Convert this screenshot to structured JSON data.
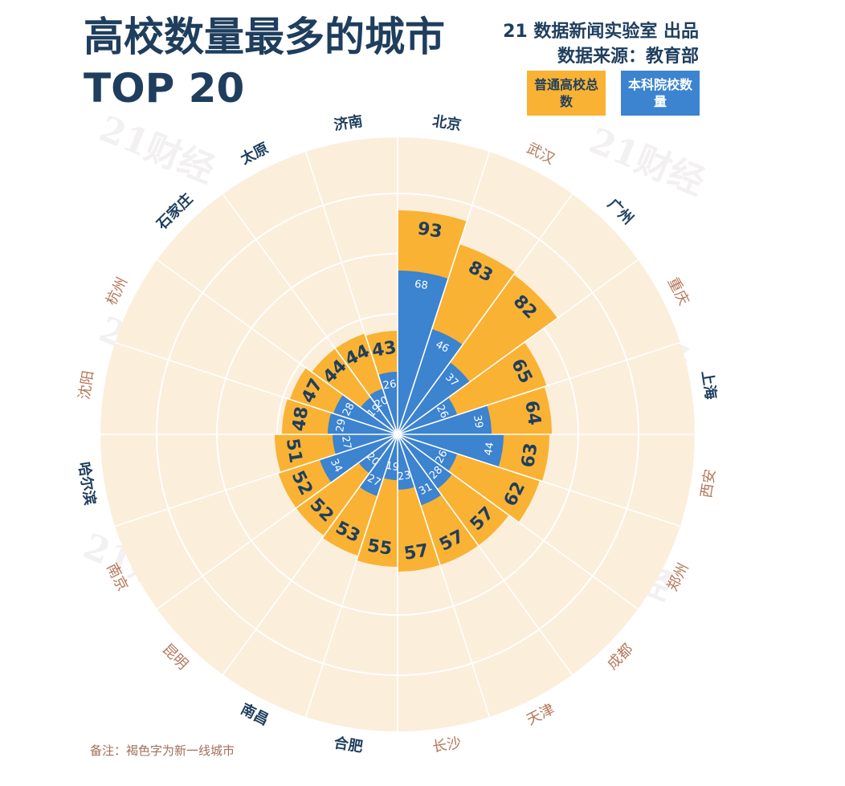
{
  "title": {
    "line1": "高校数量最多的城市",
    "line2": "TOP 20"
  },
  "credit": {
    "line1": "21 数据新闻实验室   出品",
    "line2": "数据来源：教育部"
  },
  "legend": {
    "total": "普通高校总数",
    "undergrad": "本科院校数量"
  },
  "note": "备注：褐色字为新一线城市",
  "watermark": "21财经",
  "colors": {
    "total": "#f9b233",
    "undergrad": "#3c83d0",
    "background_disc": "#fbeedb",
    "tier1_label": "#1f3e5e",
    "new_tier1_label": "#b5775b",
    "value_text": "#1f3e5e"
  },
  "chart_data": {
    "type": "polar-bar",
    "title": "高校数量最多的城市 TOP 20",
    "rmax": 100,
    "rings": [
      25,
      50,
      75,
      100
    ],
    "series": [
      {
        "name": "普通高校总数",
        "values": [
          93,
          83,
          82,
          65,
          64,
          63,
          62,
          57,
          57,
          57,
          55,
          53,
          52,
          52,
          51,
          48,
          47,
          44,
          44,
          43
        ]
      },
      {
        "name": "本科院校数量",
        "values": [
          68,
          46,
          37,
          26,
          39,
          44,
          26,
          28,
          31,
          23,
          19,
          27,
          20,
          34,
          27,
          29,
          28,
          19,
          20,
          26
        ]
      }
    ],
    "categories": [
      {
        "name": "北京",
        "new_tier1": false
      },
      {
        "name": "武汉",
        "new_tier1": true
      },
      {
        "name": "广州",
        "new_tier1": false
      },
      {
        "name": "重庆",
        "new_tier1": true
      },
      {
        "name": "上海",
        "new_tier1": false
      },
      {
        "name": "西安",
        "new_tier1": true
      },
      {
        "name": "郑州",
        "new_tier1": true
      },
      {
        "name": "成都",
        "new_tier1": true
      },
      {
        "name": "天津",
        "new_tier1": true
      },
      {
        "name": "长沙",
        "new_tier1": true
      },
      {
        "name": "合肥",
        "new_tier1": false
      },
      {
        "name": "南昌",
        "new_tier1": false
      },
      {
        "name": "昆明",
        "new_tier1": true
      },
      {
        "name": "南京",
        "new_tier1": true
      },
      {
        "name": "哈尔滨",
        "new_tier1": false
      },
      {
        "name": "沈阳",
        "new_tier1": true
      },
      {
        "name": "杭州",
        "new_tier1": true
      },
      {
        "name": "石家庄",
        "new_tier1": false
      },
      {
        "name": "太原",
        "new_tier1": false
      },
      {
        "name": "济南",
        "new_tier1": false
      }
    ]
  }
}
